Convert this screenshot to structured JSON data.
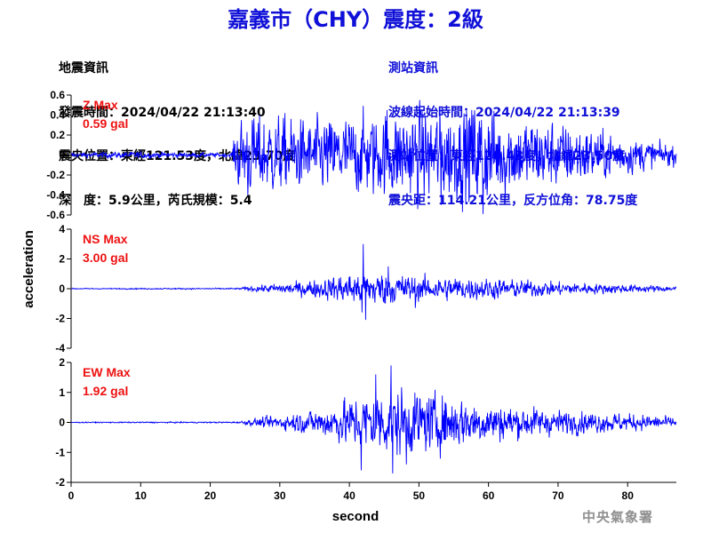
{
  "title": "嘉義市（CHY）震度：2級",
  "earthquake_info": {
    "heading": "地震資訊",
    "origin_time": "發震時間：2024/04/22 21:13:40",
    "epicenter": "震央位置：東經121.53度，北緯23.70度",
    "depth": "深　度：5.9公里，芮氏規模：5.4"
  },
  "station_info": {
    "heading": "測站資訊",
    "wave_start": "波線起始時間：2024/04/22 21:13:39",
    "location": "測站位置：東經120.43度，北緯23.50度",
    "distance": "震央距：114.21公里，反方位角：78.75度"
  },
  "agency": "中央氣象署",
  "chart_data": {
    "type": "line",
    "xlabel": "second",
    "ylabel": "acceleration",
    "xlim": [
      0,
      87
    ],
    "xticks": [
      0,
      10,
      20,
      30,
      40,
      50,
      60,
      70,
      80
    ],
    "line_color": "#0000ff",
    "label_color": "#ee1111",
    "panels": [
      {
        "component": "Z",
        "label_line1": "Z Max",
        "label_line2": "0.59 gal",
        "ylim": [
          -0.6,
          0.6
        ],
        "yticks": [
          -0.6,
          -0.4,
          -0.2,
          0,
          0.2,
          0.4,
          0.6
        ],
        "yticklabels": [
          "-0.6",
          "-0.4",
          "-0.2",
          "0",
          "0.2",
          "0.4",
          "0.6"
        ],
        "envelope": [
          [
            0,
            0.02
          ],
          [
            10,
            0.03
          ],
          [
            13,
            0.025
          ],
          [
            20,
            0.02
          ],
          [
            23,
            0.02
          ],
          [
            23.5,
            0.15
          ],
          [
            24,
            0.3
          ],
          [
            27,
            0.35
          ],
          [
            30,
            0.33
          ],
          [
            34,
            0.3
          ],
          [
            40,
            0.33
          ],
          [
            45,
            0.36
          ],
          [
            50,
            0.4
          ],
          [
            55,
            0.38
          ],
          [
            59,
            0.45
          ],
          [
            62,
            0.35
          ],
          [
            65,
            0.32
          ],
          [
            70,
            0.28
          ],
          [
            75,
            0.22
          ],
          [
            80,
            0.16
          ],
          [
            85,
            0.1
          ],
          [
            87,
            0.08
          ]
        ],
        "spikes": [
          [
            59.2,
            -0.59
          ],
          [
            53.2,
            -0.5
          ],
          [
            57.6,
            0.45
          ],
          [
            45.4,
            0.45
          ],
          [
            25.4,
            -0.4
          ]
        ]
      },
      {
        "component": "NS",
        "label_line1": "NS Max",
        "label_line2": "3.00 gal",
        "ylim": [
          -4,
          4
        ],
        "yticks": [
          -4,
          -2,
          0,
          2,
          4
        ],
        "yticklabels": [
          "-4",
          "-2",
          "0",
          "2",
          "4"
        ],
        "envelope": [
          [
            0,
            0.03
          ],
          [
            24,
            0.04
          ],
          [
            26,
            0.15
          ],
          [
            30,
            0.3
          ],
          [
            35,
            0.5
          ],
          [
            39,
            0.8
          ],
          [
            41,
            1.0
          ],
          [
            43,
            1.0
          ],
          [
            47,
            0.9
          ],
          [
            50,
            0.7
          ],
          [
            55,
            0.7
          ],
          [
            60,
            0.6
          ],
          [
            65,
            0.5
          ],
          [
            70,
            0.4
          ],
          [
            75,
            0.3
          ],
          [
            80,
            0.25
          ],
          [
            87,
            0.15
          ]
        ],
        "spikes": [
          [
            42.0,
            3.0
          ],
          [
            42.35,
            -2.1
          ],
          [
            41.8,
            -1.6
          ],
          [
            45.6,
            1.5
          ],
          [
            49.5,
            -1.3
          ]
        ]
      },
      {
        "component": "EW",
        "label_line1": "EW Max",
        "label_line2": "1.92 gal",
        "ylim": [
          -2,
          2
        ],
        "yticks": [
          -2,
          -1,
          0,
          1,
          2
        ],
        "yticklabels": [
          "-2",
          "-1",
          "0",
          "1",
          "2"
        ],
        "envelope": [
          [
            0,
            0.015
          ],
          [
            24,
            0.02
          ],
          [
            26,
            0.1
          ],
          [
            30,
            0.2
          ],
          [
            36,
            0.4
          ],
          [
            40,
            0.7
          ],
          [
            44,
            0.9
          ],
          [
            47,
            0.95
          ],
          [
            50,
            0.85
          ],
          [
            55,
            0.75
          ],
          [
            60,
            0.55
          ],
          [
            65,
            0.45
          ],
          [
            70,
            0.35
          ],
          [
            75,
            0.3
          ],
          [
            80,
            0.25
          ],
          [
            87,
            0.15
          ]
        ],
        "spikes": [
          [
            46.0,
            1.9
          ],
          [
            46.2,
            -1.7
          ],
          [
            41.7,
            -1.6
          ],
          [
            43.8,
            1.6
          ],
          [
            48.2,
            -1.4
          ]
        ]
      }
    ]
  }
}
